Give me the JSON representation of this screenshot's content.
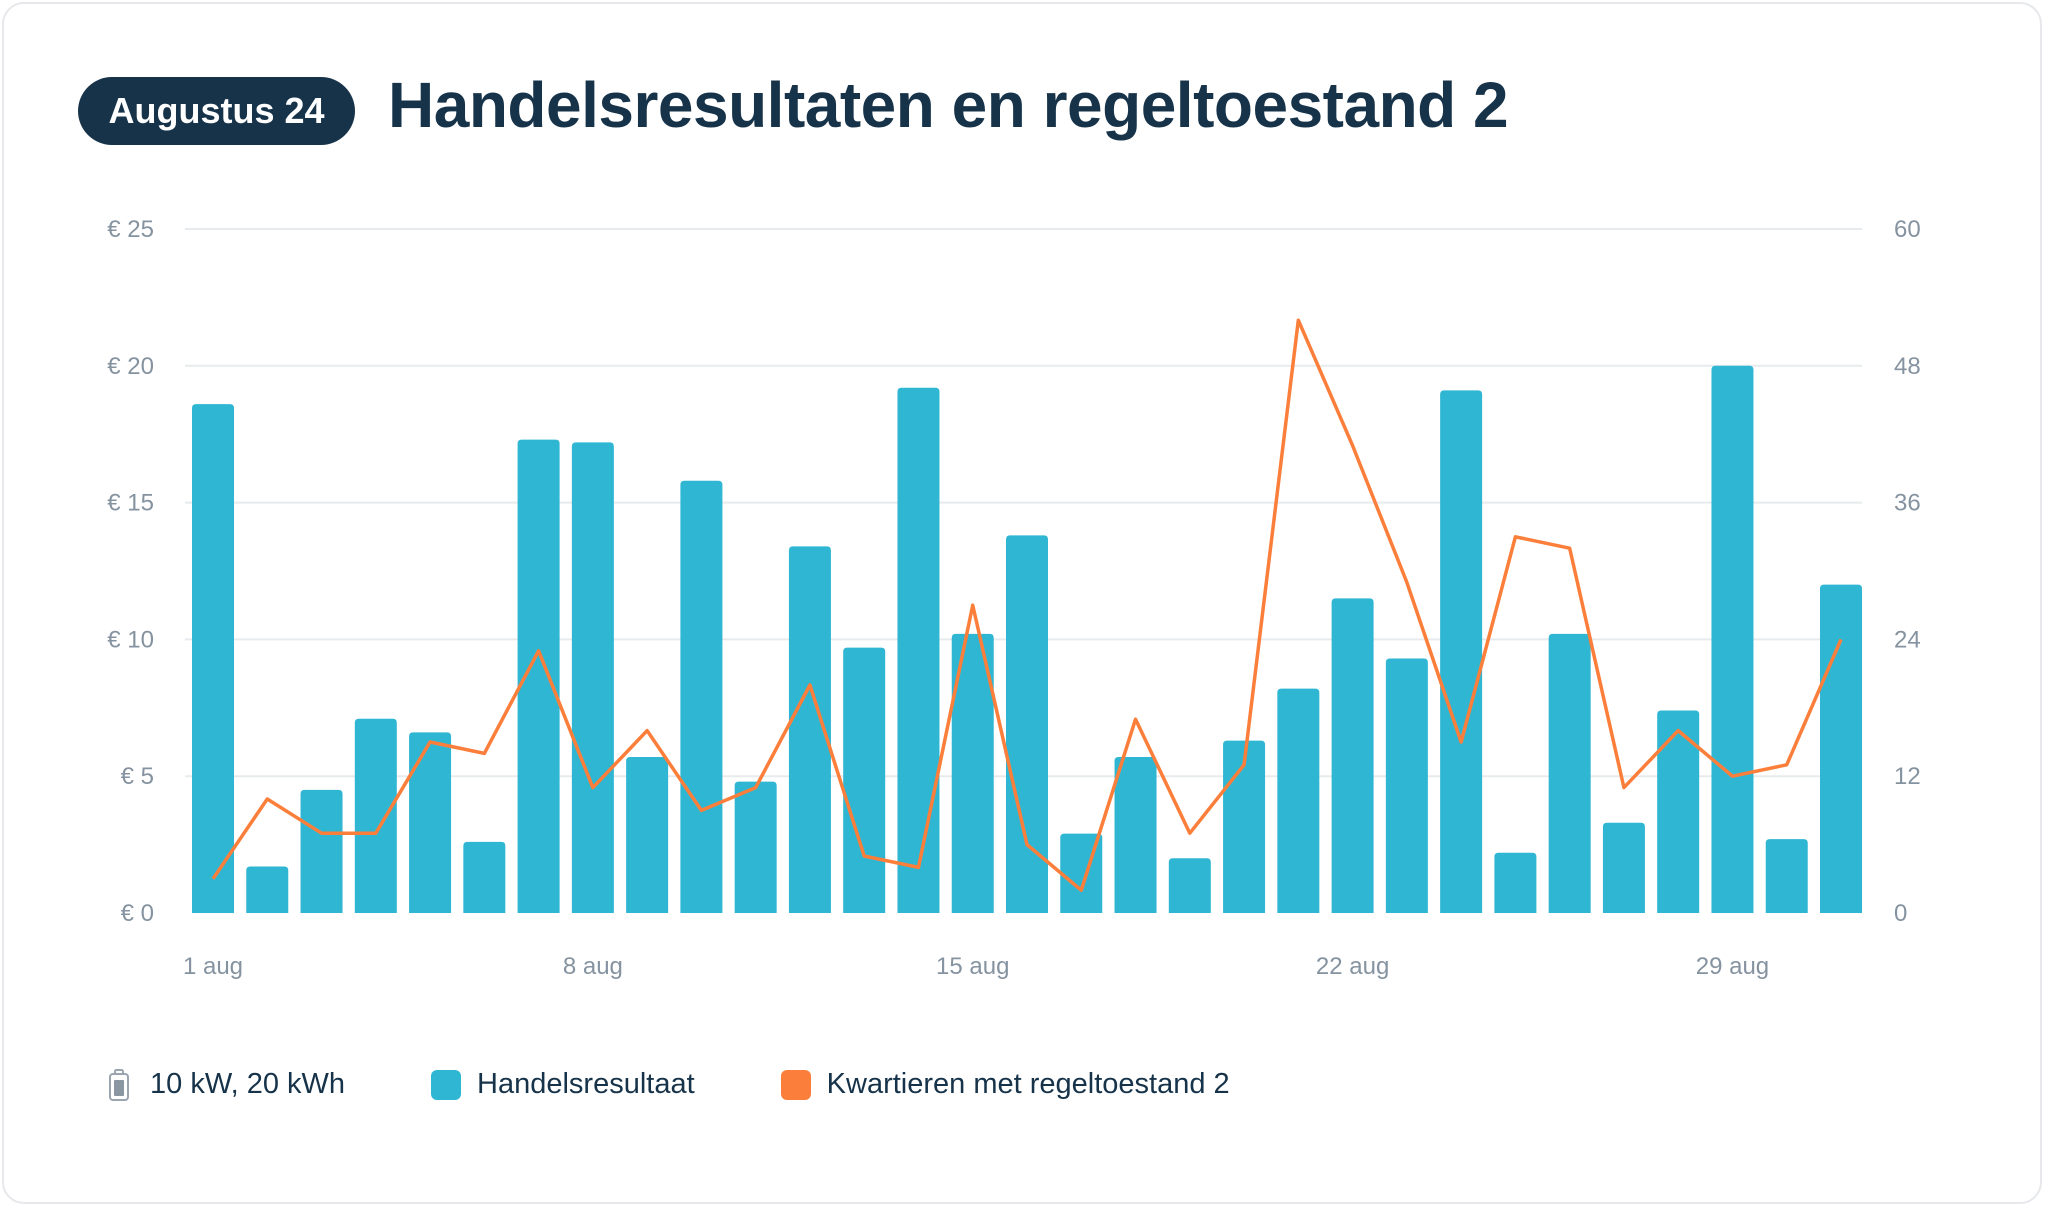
{
  "header": {
    "badge": "Augustus 24",
    "title": "Handelsresultaten en regeltoestand 2"
  },
  "legend": {
    "battery_icon": "battery-icon",
    "battery": "10 kW, 20 kWh",
    "series1": "Handelsresultaat",
    "series2": "Kwartieren met regeltoestand 2"
  },
  "colors": {
    "bar": "#2fb6d3",
    "line": "#fb7f3b",
    "text": "#16334a",
    "grid": "#e8ebee"
  },
  "chart_data": {
    "type": "bar+line",
    "categories": [
      "1 aug",
      "2 aug",
      "3 aug",
      "4 aug",
      "5 aug",
      "6 aug",
      "7 aug",
      "8 aug",
      "9 aug",
      "10 aug",
      "11 aug",
      "12 aug",
      "13 aug",
      "14 aug",
      "15 aug",
      "16 aug",
      "17 aug",
      "18 aug",
      "19 aug",
      "20 aug",
      "21 aug",
      "22 aug",
      "23 aug",
      "24 aug",
      "25 aug",
      "26 aug",
      "27 aug",
      "28 aug",
      "29 aug",
      "30 aug",
      "31 aug"
    ],
    "x_tick_labels": [
      "1 aug",
      "8 aug",
      "15 aug",
      "22 aug",
      "29 aug"
    ],
    "y_left": {
      "ticks": [
        "€ 0",
        "€ 5",
        "€ 10",
        "€ 15",
        "€ 20",
        "€ 25"
      ],
      "range": [
        0,
        25
      ]
    },
    "y_right": {
      "ticks": [
        "0",
        "12",
        "24",
        "36",
        "48",
        "60"
      ],
      "range": [
        0,
        60
      ]
    },
    "grid": true,
    "legend_position": "bottom-left",
    "series": [
      {
        "name": "Handelsresultaat",
        "type": "bar",
        "axis": "left",
        "values": [
          18.6,
          1.7,
          4.5,
          7.1,
          6.6,
          2.6,
          17.3,
          17.2,
          5.7,
          15.8,
          4.8,
          13.4,
          9.7,
          19.2,
          10.2,
          13.8,
          2.9,
          5.7,
          2.0,
          6.3,
          8.2,
          11.5,
          9.3,
          19.1,
          2.2,
          10.2,
          3.3,
          7.4,
          20.0,
          2.7,
          12.0
        ]
      },
      {
        "name": "Kwartieren met regeltoestand 2",
        "type": "line",
        "axis": "right",
        "values": [
          3,
          10,
          7,
          7,
          15,
          14,
          23,
          11,
          16,
          9,
          11,
          20,
          5,
          4,
          27,
          6,
          2,
          17,
          7,
          13,
          52,
          41,
          29,
          15,
          33,
          32,
          11,
          16,
          12,
          13,
          24
        ]
      }
    ]
  }
}
